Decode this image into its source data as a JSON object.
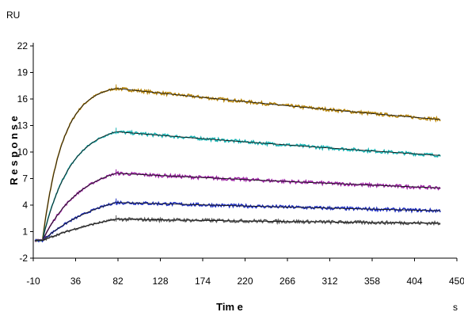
{
  "chart_data": {
    "type": "line",
    "title": "",
    "xlabel": "Tim e",
    "ylabel": "R e s p o n s e",
    "x_unit": "s",
    "y_unit": "RU",
    "xlim": [
      -10,
      450
    ],
    "ylim": [
      -2,
      22
    ],
    "x_ticks": [
      "-10",
      "36",
      "82",
      "128",
      "174",
      "220",
      "266",
      "312",
      "358",
      "404",
      "450"
    ],
    "y_ticks": [
      "22",
      "19",
      "16",
      "13",
      "10",
      "7",
      "4",
      "1",
      "-2"
    ],
    "grid": false,
    "legend": "none",
    "injection_start": 0,
    "injection_end": 80,
    "end_time": 432,
    "fit_color": "#1a1a1a",
    "series": [
      {
        "color": "#b8860b",
        "rmax": 17.2,
        "koff": 6.5e-05,
        "tau": 22
      },
      {
        "color": "#17b3b3",
        "rmax": 12.3,
        "koff": 7e-05,
        "tau": 30
      },
      {
        "color": "#9b1fa3",
        "rmax": 7.6,
        "koff": 7e-05,
        "tau": 42
      },
      {
        "color": "#1f2fbf",
        "rmax": 4.3,
        "koff": 7e-05,
        "tau": 70
      },
      {
        "color": "#555555",
        "rmax": 2.4,
        "koff": 6e-05,
        "tau": 100
      }
    ]
  }
}
